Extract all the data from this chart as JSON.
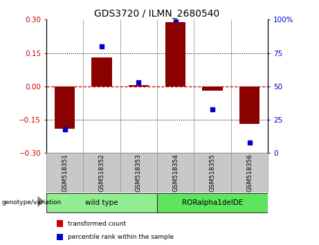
{
  "title": "GDS3720 / ILMN_2680540",
  "samples": [
    "GSM518351",
    "GSM518352",
    "GSM518353",
    "GSM518354",
    "GSM518355",
    "GSM518356"
  ],
  "transformed_count": [
    -0.19,
    0.13,
    0.005,
    0.29,
    -0.02,
    -0.17
  ],
  "percentile_rank": [
    18,
    80,
    53,
    100,
    33,
    8
  ],
  "bar_color": "#8B0000",
  "dot_color": "#0000CD",
  "left_ylim": [
    -0.3,
    0.3
  ],
  "left_yticks": [
    -0.3,
    -0.15,
    0,
    0.15,
    0.3
  ],
  "right_ylim": [
    0,
    100
  ],
  "right_yticks": [
    0,
    25,
    50,
    75,
    100
  ],
  "right_yticklabels": [
    "0",
    "25",
    "50",
    "75",
    "100%"
  ],
  "zero_line_color": "#CC0000",
  "grid_color": "black",
  "groups": [
    {
      "label": "wild type",
      "indices": [
        0,
        1,
        2
      ],
      "color": "#90EE90"
    },
    {
      "label": "RORalpha1delDE",
      "indices": [
        3,
        4,
        5
      ],
      "color": "#5EE55E"
    }
  ],
  "genotype_label": "genotype/variation",
  "legend_items": [
    {
      "label": "transformed count",
      "color": "#CC0000"
    },
    {
      "label": "percentile rank within the sample",
      "color": "#0000CD"
    }
  ],
  "bar_width": 0.55,
  "background_color": "#FFFFFF",
  "plot_bg_color": "#FFFFFF",
  "tick_label_area_color": "#C8C8C8",
  "separator_color": "#888888"
}
